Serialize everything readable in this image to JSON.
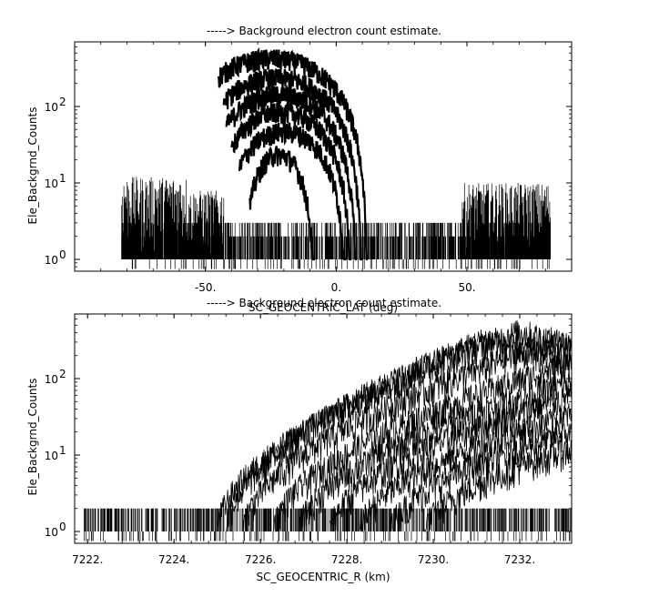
{
  "chart_data": [
    {
      "type": "line",
      "title": "-----> Background electron count estimate.",
      "xlabel": "SC_GEOCENTRIC_LAT (deg)",
      "ylabel": "Ele_Backgrnd_Counts",
      "xlim": [
        -100,
        90
      ],
      "ylim": [
        0.7,
        700
      ],
      "yscale": "log",
      "x_ticks": [
        -50,
        0,
        50
      ],
      "x_tick_labels": [
        "-50.",
        "0.",
        "50."
      ],
      "y_ticks": [
        1,
        10,
        100
      ],
      "y_tick_base": "10",
      "y_tick_exponents": [
        "0",
        "1",
        "2"
      ],
      "noise_floor": {
        "x_range": [
          -82,
          82
        ],
        "values": [
          1,
          2,
          3
        ]
      },
      "low_lat_noise": [
        {
          "x_range": [
            -82,
            -57
          ],
          "peak": 12
        },
        {
          "x_range": [
            -57,
            -43
          ],
          "peak": 8
        },
        {
          "x_range": [
            48,
            82
          ],
          "peak": 10
        }
      ],
      "series": [
        {
          "peak_x": -25,
          "peak_y": 450,
          "x_range": [
            -45,
            12
          ]
        },
        {
          "peak_x": -23,
          "peak_y": 250,
          "x_range": [
            -43,
            10
          ]
        },
        {
          "peak_x": -22,
          "peak_y": 150,
          "x_range": [
            -42,
            8
          ]
        },
        {
          "peak_x": -21,
          "peak_y": 90,
          "x_range": [
            -40,
            6
          ]
        },
        {
          "peak_x": -20,
          "peak_y": 50,
          "x_range": [
            -37,
            4
          ]
        },
        {
          "peak_x": -22,
          "peak_y": 25,
          "x_range": [
            -33,
            -8
          ]
        }
      ],
      "grid": false,
      "legend": "none"
    },
    {
      "type": "line",
      "title": "-----> Background electron count estimate.",
      "xlabel": "SC_GEOCENTRIC_R (km)",
      "ylabel": "Ele_Backgrnd_Counts",
      "xlim": [
        7221.7,
        7233.2
      ],
      "ylim": [
        0.7,
        700
      ],
      "yscale": "log",
      "x_ticks": [
        7222,
        7224,
        7226,
        7228,
        7230,
        7232
      ],
      "x_tick_labels": [
        "7222.",
        "7224.",
        "7226.",
        "7228.",
        "7230.",
        "7232."
      ],
      "y_ticks": [
        1,
        10,
        100
      ],
      "y_tick_base": "10",
      "y_tick_exponents": [
        "0",
        "1",
        "2"
      ],
      "noise_floor": {
        "x_range": [
          7221.9,
          7233.2
        ],
        "values": [
          1,
          2
        ]
      },
      "series": [
        {
          "start_x": 7225.0,
          "peak_x": 7232.0,
          "peak_y": 420
        },
        {
          "start_x": 7225.2,
          "peak_x": 7231.2,
          "peak_y": 330
        },
        {
          "start_x": 7225.6,
          "peak_x": 7232.8,
          "peak_y": 300
        },
        {
          "start_x": 7226.3,
          "peak_x": 7233.2,
          "peak_y": 160
        },
        {
          "start_x": 7226.9,
          "peak_x": 7233.2,
          "peak_y": 90
        },
        {
          "start_x": 7227.6,
          "peak_x": 7233.2,
          "peak_y": 60
        },
        {
          "start_x": 7228.3,
          "peak_x": 7233.2,
          "peak_y": 35
        },
        {
          "start_x": 7229.0,
          "peak_x": 7233.2,
          "peak_y": 20
        },
        {
          "start_x": 7229.8,
          "peak_x": 7233.2,
          "peak_y": 12
        }
      ],
      "grid": false,
      "legend": "none"
    }
  ]
}
